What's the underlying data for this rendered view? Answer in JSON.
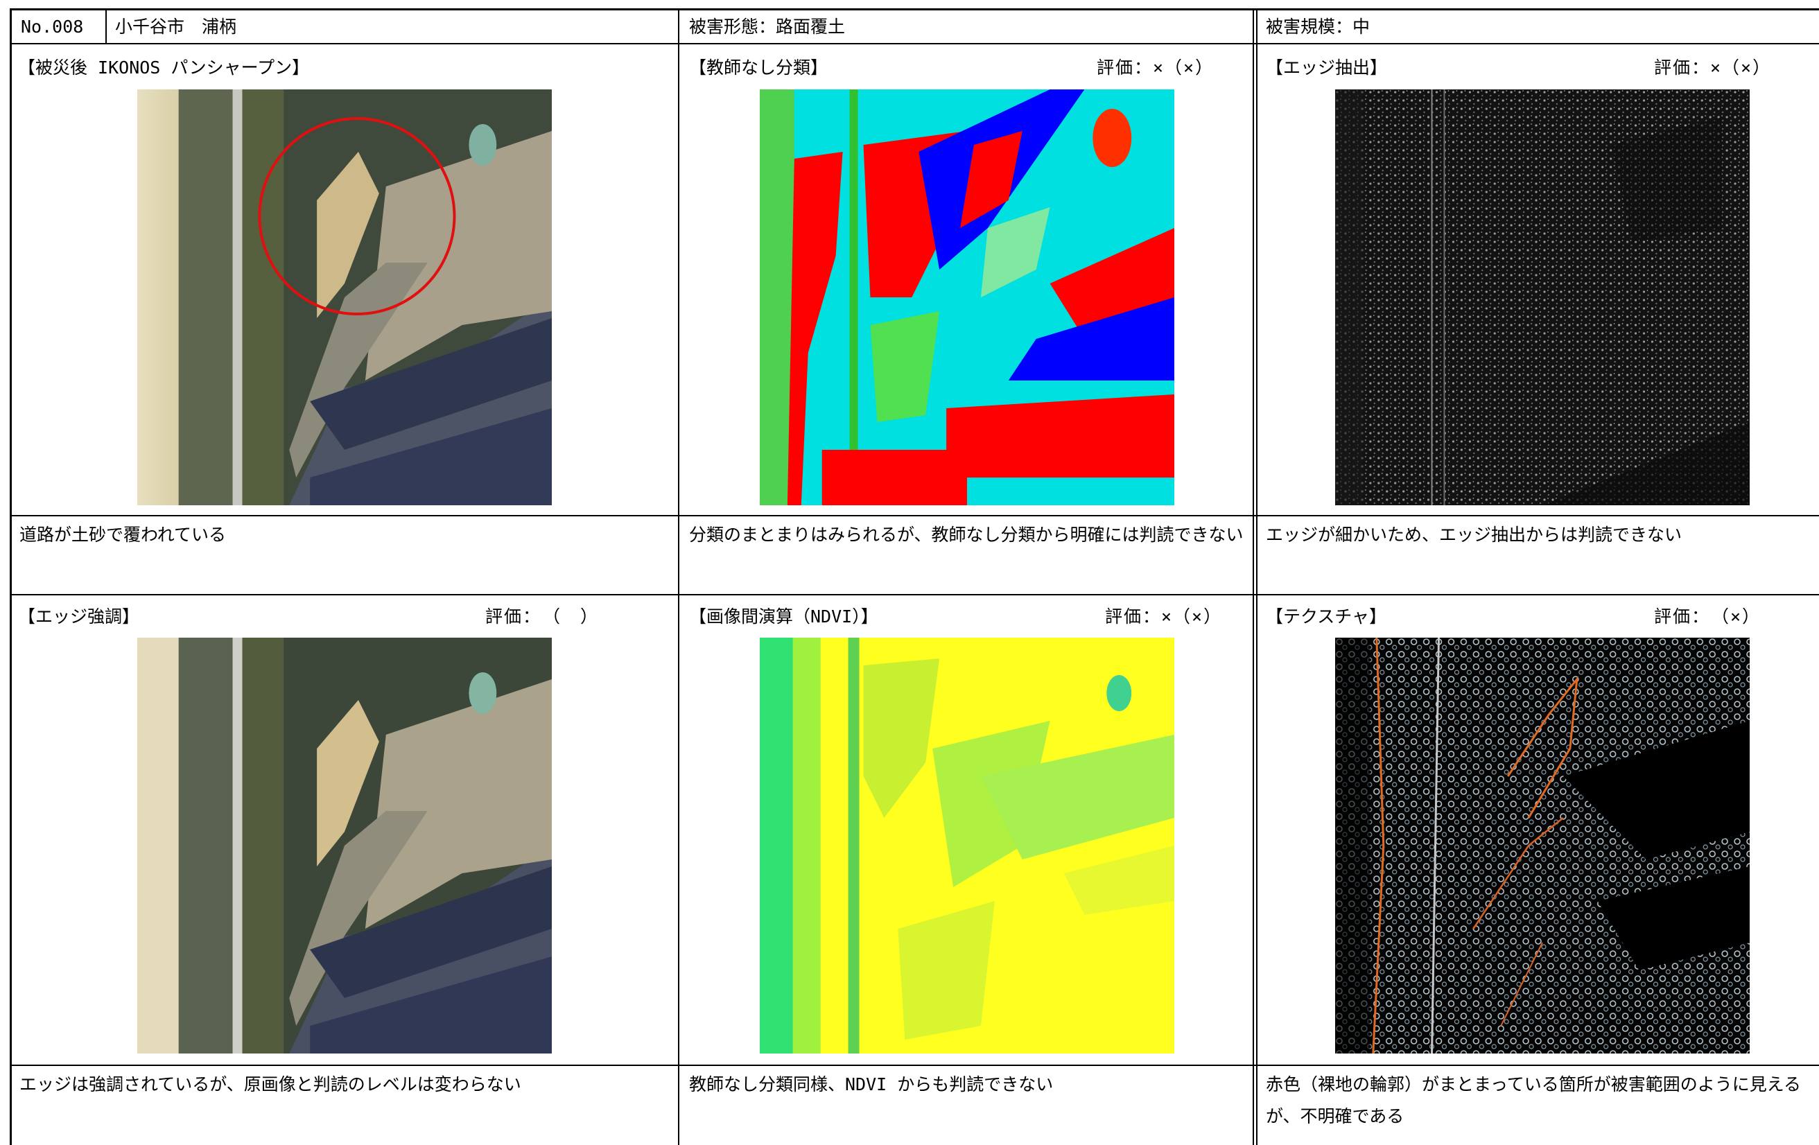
{
  "header": {
    "number": "No.008",
    "location": "小千谷市　浦柄",
    "damage_type": "被害形態：路面覆土",
    "damage_scale": "被害規模：中"
  },
  "row1": {
    "panel_a": {
      "title": "【被災後 IKONOS パンシャープン】",
      "evaluation": "",
      "desc": "道路が土砂で覆われている"
    },
    "panel_b": {
      "title": "【教師なし分類】",
      "evaluation": "評価：×（×）",
      "desc": "分類のまとまりはみられるが、教師なし分類から明確には判読できない"
    },
    "panel_c": {
      "title": "【エッジ抽出】",
      "evaluation": "評価：×（×）",
      "desc": "エッジが細かいため、エッジ抽出からは判読できない"
    }
  },
  "row2": {
    "panel_a": {
      "title": "【エッジ強調】",
      "evaluation": "評価：　（　）",
      "desc": "エッジは強調されているが、原画像と判読のレベルは変わらない"
    },
    "panel_b": {
      "title": "【画像間演算（NDVI）】",
      "evaluation": "評価：×（×）",
      "desc": "教師なし分類同様、NDVI からも判読できない"
    },
    "panel_c": {
      "title": "【テクスチャ】",
      "evaluation": "評価：　（×）",
      "desc": "赤色（裸地の輪郭）がまとまっている箇所が被害範囲のように見えるが、不明確である"
    }
  },
  "images": {
    "satellite": "pansharpened-satellite-image",
    "classification": "unsupervised-classification-image",
    "edge_extract": "edge-extraction-image",
    "edge_enhance": "edge-enhanced-image",
    "ndvi": "ndvi-image",
    "texture": "texture-image"
  },
  "colors": {
    "circle": "#e01010",
    "class_red": "#ff0000",
    "class_blue": "#0000ff",
    "class_cyan": "#00e0e0",
    "class_green": "#40d040",
    "ndvi_yellow": "#ffff20",
    "ndvi_green": "#40e060"
  }
}
